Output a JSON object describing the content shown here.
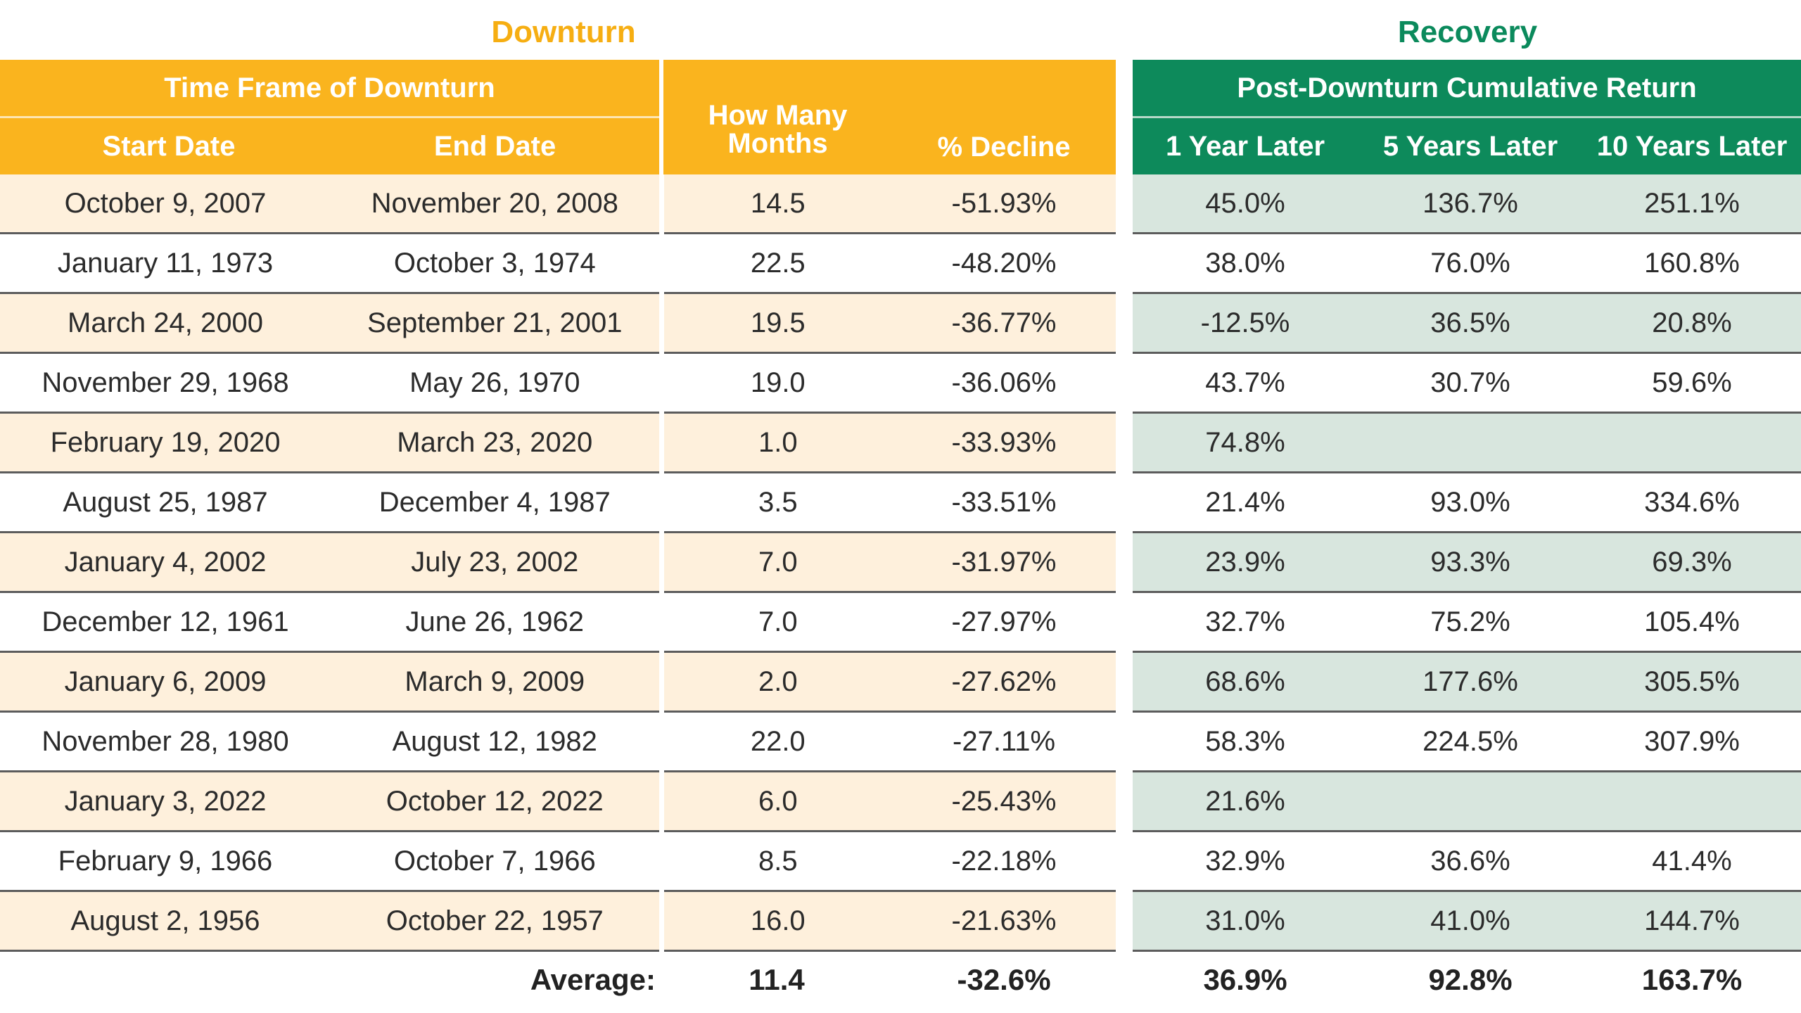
{
  "header": {
    "downturn_title": "Downturn",
    "recovery_title": "Recovery",
    "time_frame": "Time Frame of Downturn",
    "start_date": "Start Date",
    "end_date": "End Date",
    "how_many_months": "How Many Months",
    "pct_decline": "% Decline",
    "post_downturn": "Post-Downturn Cumulative Return",
    "one_year": "1 Year Later",
    "five_years": "5 Years Later",
    "ten_years": "10 Years Later"
  },
  "rows": [
    {
      "start": "October 9, 2007",
      "end": "November 20, 2008",
      "months": "14.5",
      "decline": "-51.93%",
      "y1": "45.0%",
      "y5": "136.7%",
      "y10": "251.1%"
    },
    {
      "start": "January 11, 1973",
      "end": "October 3, 1974",
      "months": "22.5",
      "decline": "-48.20%",
      "y1": "38.0%",
      "y5": "76.0%",
      "y10": "160.8%"
    },
    {
      "start": "March 24, 2000",
      "end": "September 21, 2001",
      "months": "19.5",
      "decline": "-36.77%",
      "y1": "-12.5%",
      "y5": "36.5%",
      "y10": "20.8%"
    },
    {
      "start": "November 29, 1968",
      "end": "May 26, 1970",
      "months": "19.0",
      "decline": "-36.06%",
      "y1": "43.7%",
      "y5": "30.7%",
      "y10": "59.6%"
    },
    {
      "start": "February 19, 2020",
      "end": "March 23, 2020",
      "months": "1.0",
      "decline": "-33.93%",
      "y1": "74.8%",
      "y5": "",
      "y10": ""
    },
    {
      "start": "August 25, 1987",
      "end": "December 4, 1987",
      "months": "3.5",
      "decline": "-33.51%",
      "y1": "21.4%",
      "y5": "93.0%",
      "y10": "334.6%"
    },
    {
      "start": "January 4, 2002",
      "end": "July 23, 2002",
      "months": "7.0",
      "decline": "-31.97%",
      "y1": "23.9%",
      "y5": "93.3%",
      "y10": "69.3%"
    },
    {
      "start": "December 12, 1961",
      "end": "June 26, 1962",
      "months": "7.0",
      "decline": "-27.97%",
      "y1": "32.7%",
      "y5": "75.2%",
      "y10": "105.4%"
    },
    {
      "start": "January 6, 2009",
      "end": "March 9, 2009",
      "months": "2.0",
      "decline": "-27.62%",
      "y1": "68.6%",
      "y5": "177.6%",
      "y10": "305.5%"
    },
    {
      "start": "November 28, 1980",
      "end": "August 12, 1982",
      "months": "22.0",
      "decline": "-27.11%",
      "y1": "58.3%",
      "y5": "224.5%",
      "y10": "307.9%"
    },
    {
      "start": "January 3, 2022",
      "end": "October 12, 2022",
      "months": "6.0",
      "decline": "-25.43%",
      "y1": "21.6%",
      "y5": "",
      "y10": ""
    },
    {
      "start": "February 9, 1966",
      "end": "October 7, 1966",
      "months": "8.5",
      "decline": "-22.18%",
      "y1": "32.9%",
      "y5": "36.6%",
      "y10": "41.4%"
    },
    {
      "start": "August 2, 1956",
      "end": "October 22, 1957",
      "months": "16.0",
      "decline": "-21.63%",
      "y1": "31.0%",
      "y5": "41.0%",
      "y10": "144.7%"
    }
  ],
  "average": {
    "label": "Average:",
    "months": "11.4",
    "decline": "-32.6%",
    "y1": "36.9%",
    "y5": "92.8%",
    "y10": "163.7%"
  },
  "colors": {
    "downturn_header": "#FAB41E",
    "downturn_title": "#F6AE12",
    "recovery_header": "#0D8A5B",
    "downturn_row_shade": "#FEF0DC",
    "recovery_row_shade": "#D8E6DE"
  },
  "chart_data": {
    "type": "table",
    "title": "",
    "columns": [
      "Start Date",
      "End Date",
      "How Many Months",
      "% Decline",
      "1 Year Later",
      "5 Years Later",
      "10 Years Later"
    ],
    "groups": [
      {
        "name": "Downturn",
        "columns": [
          "Start Date",
          "End Date",
          "How Many Months",
          "% Decline"
        ]
      },
      {
        "name": "Recovery",
        "columns": [
          "1 Year Later",
          "5 Years Later",
          "10 Years Later"
        ]
      }
    ],
    "rows": [
      [
        "October 9, 2007",
        "November 20, 2008",
        14.5,
        -51.93,
        45.0,
        136.7,
        251.1
      ],
      [
        "January 11, 1973",
        "October 3, 1974",
        22.5,
        -48.2,
        38.0,
        76.0,
        160.8
      ],
      [
        "March 24, 2000",
        "September 21, 2001",
        19.5,
        -36.77,
        -12.5,
        36.5,
        20.8
      ],
      [
        "November 29, 1968",
        "May 26, 1970",
        19.0,
        -36.06,
        43.7,
        30.7,
        59.6
      ],
      [
        "February 19, 2020",
        "March 23, 2020",
        1.0,
        -33.93,
        74.8,
        null,
        null
      ],
      [
        "August 25, 1987",
        "December 4, 1987",
        3.5,
        -33.51,
        21.4,
        93.0,
        334.6
      ],
      [
        "January 4, 2002",
        "July 23, 2002",
        7.0,
        -31.97,
        23.9,
        93.3,
        69.3
      ],
      [
        "December 12, 1961",
        "June 26, 1962",
        7.0,
        -27.97,
        32.7,
        75.2,
        105.4
      ],
      [
        "January 6, 2009",
        "March 9, 2009",
        2.0,
        -27.62,
        68.6,
        177.6,
        305.5
      ],
      [
        "November 28, 1980",
        "August 12, 1982",
        22.0,
        -27.11,
        58.3,
        224.5,
        307.9
      ],
      [
        "January 3, 2022",
        "October 12, 2022",
        6.0,
        -25.43,
        21.6,
        null,
        null
      ],
      [
        "February 9, 1966",
        "October 7, 1966",
        8.5,
        -22.18,
        32.9,
        36.6,
        41.4
      ],
      [
        "August 2, 1956",
        "October 22, 1957",
        16.0,
        -21.63,
        31.0,
        41.0,
        144.7
      ]
    ],
    "average": {
      "months": 11.4,
      "decline": -32.6,
      "y1": 36.9,
      "y5": 92.8,
      "y10": 163.7
    }
  }
}
